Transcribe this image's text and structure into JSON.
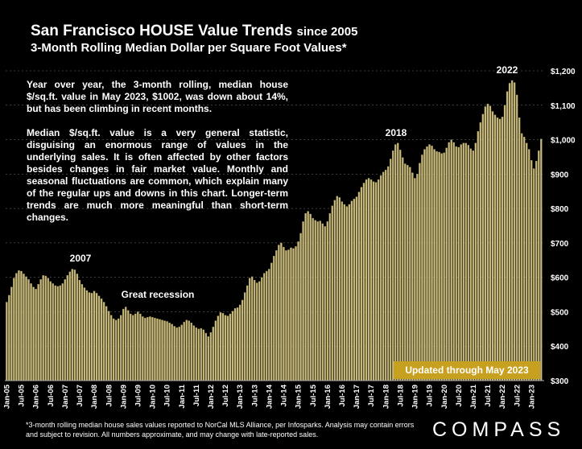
{
  "title": "San Francisco HOUSE Value Trends",
  "title_suffix": "since 2005",
  "subtitle": "3-Month Rolling Median Dollar per Square Foot Values*",
  "paragraphs": [
    "Year over year, the 3-month rolling, median house $/sq.ft. value in May 2023, $1002, was down about 14%, but has been climbing in recent months.",
    "Median $/sq.ft. value is a very general statistic, disguising an enormous range of values in the underlying sales. It is often affected by other factors besides changes in fair market value. Monthly and seasonal fluctuations are common, which explain many of the regular ups and downs in this chart. Longer-term trends are much more meaningful than short-term changes."
  ],
  "updated_label": "Updated through May 2023",
  "footnote": "*3-month rolling median house sales values reported to NorCal MLS Alliance, per Infosparks. Analysis may contain errors and subject to revision. All numbers approximate, and may change with late-reported sales.",
  "brand": "COMPASS",
  "colors": {
    "bar": "#c9bc82",
    "bar_edge": "#9a8a4a",
    "background": "#000000",
    "grid": "#7a7a7a",
    "badge": "#c8a020"
  },
  "chart_data": {
    "type": "bar",
    "ylim": [
      300,
      1200
    ],
    "yticks": [
      300,
      400,
      500,
      600,
      700,
      800,
      900,
      1000,
      1100,
      1200
    ],
    "ytick_labels": [
      "$300",
      "$400",
      "$500",
      "$600",
      "$700",
      "$800",
      "$900",
      "$1,000",
      "$1,100",
      "$1,200"
    ],
    "xtick_labels": [
      "Jan-05",
      "Jul-05",
      "Jan-06",
      "Jul-06",
      "Jan-07",
      "Jul-07",
      "Jan-08",
      "Jul-08",
      "Jan-09",
      "Jul-09",
      "Jan-10",
      "Jul-10",
      "Jan-11",
      "Jul-11",
      "Jan-12",
      "Jul-12",
      "Jan-13",
      "Jul-13",
      "Jan-14",
      "Jul-14",
      "Jan-15",
      "Jul-15",
      "Jan-16",
      "Jul-16",
      "Jan-17",
      "Jul-17",
      "Jan-18",
      "Jul-18",
      "Jan-19",
      "Jul-19",
      "Jan-20",
      "Jul-20",
      "Jan-21",
      "Jul-21",
      "Jan-22",
      "Jul-22",
      "Jan-23"
    ],
    "start_month": "2005-01",
    "annotations": [
      "2007",
      "Great recession",
      "2018",
      "2022"
    ],
    "values": [
      528,
      548,
      572,
      598,
      612,
      620,
      618,
      610,
      602,
      594,
      582,
      572,
      566,
      580,
      594,
      606,
      604,
      598,
      588,
      582,
      576,
      574,
      576,
      582,
      594,
      606,
      616,
      624,
      622,
      610,
      592,
      580,
      570,
      562,
      556,
      554,
      560,
      554,
      546,
      538,
      528,
      516,
      502,
      490,
      480,
      476,
      480,
      490,
      508,
      514,
      504,
      494,
      490,
      494,
      500,
      494,
      486,
      482,
      484,
      486,
      484,
      482,
      480,
      478,
      476,
      474,
      472,
      468,
      464,
      458,
      454,
      456,
      462,
      470,
      476,
      474,
      468,
      460,
      454,
      450,
      452,
      448,
      438,
      428,
      440,
      456,
      474,
      488,
      498,
      496,
      490,
      488,
      494,
      502,
      510,
      512,
      520,
      534,
      556,
      576,
      598,
      602,
      592,
      584,
      588,
      600,
      612,
      618,
      624,
      642,
      662,
      678,
      694,
      700,
      688,
      678,
      680,
      686,
      684,
      690,
      704,
      728,
      762,
      786,
      792,
      784,
      772,
      766,
      762,
      764,
      756,
      748,
      762,
      786,
      808,
      824,
      836,
      832,
      820,
      812,
      806,
      812,
      822,
      828,
      834,
      848,
      862,
      874,
      884,
      888,
      884,
      878,
      876,
      884,
      896,
      906,
      912,
      922,
      944,
      968,
      986,
      990,
      970,
      948,
      930,
      926,
      920,
      904,
      888,
      900,
      932,
      956,
      972,
      980,
      986,
      982,
      972,
      966,
      964,
      960,
      962,
      976,
      992,
      1000,
      992,
      980,
      978,
      986,
      990,
      990,
      984,
      974,
      968,
      990,
      1024,
      1050,
      1074,
      1096,
      1104,
      1098,
      1082,
      1072,
      1064,
      1060,
      1066,
      1100,
      1140,
      1164,
      1172,
      1166,
      1130,
      1064,
      1018,
      1008,
      990,
      972,
      940,
      916,
      938,
      968,
      1002
    ]
  }
}
